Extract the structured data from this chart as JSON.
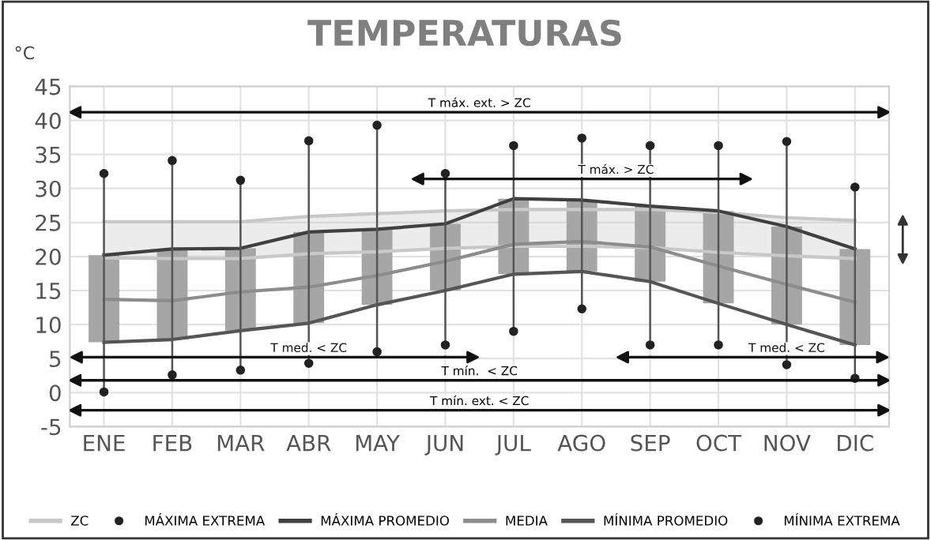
{
  "chart_data": {
    "type": "line",
    "title": "TEMPERATURAS",
    "ylabel": "°C",
    "categories": [
      "ENE",
      "FEB",
      "MAR",
      "ABR",
      "MAY",
      "JUN",
      "JUL",
      "AGO",
      "SEP",
      "OCT",
      "NOV",
      "DIC"
    ],
    "ylim": [
      -5,
      45
    ],
    "yticks": [
      -5,
      0,
      5,
      10,
      15,
      20,
      25,
      30,
      35,
      40,
      45
    ],
    "grid": true,
    "legend": "bottom",
    "series": [
      {
        "name": null,
        "type": "bar",
        "color": "#a6a6a6",
        "base": [
          7.4,
          7.8,
          9.1,
          10.2,
          12.9,
          15.0,
          17.4,
          17.8,
          16.3,
          13.1,
          10.0,
          7.0
        ],
        "values": [
          12.8,
          13.3,
          12.1,
          13.4,
          11.1,
          9.8,
          11.1,
          10.5,
          11.1,
          13.6,
          14.4,
          14.1
        ]
      },
      {
        "name": "ZC",
        "color": "#c8c8c8",
        "values": [
          25.1,
          25.1,
          25.1,
          25.9,
          26.3,
          26.7,
          26.9,
          26.9,
          26.9,
          26.5,
          25.7,
          25.3
        ],
        "lower": [
          19.8,
          19.7,
          19.7,
          20.4,
          20.7,
          21.2,
          21.5,
          21.5,
          21.3,
          20.6,
          20.1,
          19.7
        ],
        "upper": [
          25.1,
          25.1,
          25.1,
          25.9,
          26.3,
          26.7,
          26.9,
          26.9,
          26.9,
          26.5,
          25.7,
          25.3
        ]
      },
      {
        "name": null,
        "color": "#c8c8c8",
        "values": [
          19.8,
          19.7,
          19.7,
          20.4,
          20.7,
          21.2,
          21.5,
          21.5,
          21.3,
          20.6,
          20.1,
          19.7
        ]
      },
      {
        "name": "MÁXIMA EXTREMA",
        "type": "scatter",
        "marker": "circle",
        "color": "#222222",
        "values": [
          32.2,
          34.1,
          31.2,
          37.0,
          39.3,
          32.2,
          36.3,
          37.4,
          36.3,
          36.3,
          36.9,
          30.2
        ]
      },
      {
        "name": "MÁXIMA PROMEDIO",
        "color": "#404040",
        "values": [
          20.2,
          21.1,
          21.2,
          23.6,
          24.0,
          24.8,
          28.5,
          28.3,
          27.4,
          26.7,
          24.4,
          21.1
        ]
      },
      {
        "name": "MEDIA",
        "color": "#8c8c8c",
        "values": [
          13.7,
          13.5,
          14.8,
          15.5,
          17.2,
          19.3,
          21.8,
          22.2,
          21.4,
          18.6,
          15.9,
          13.3
        ]
      },
      {
        "name": "MÍNIMA PROMEDIO",
        "color": "#555555",
        "values": [
          7.4,
          7.8,
          9.1,
          10.2,
          12.9,
          15.0,
          17.4,
          17.8,
          16.3,
          13.1,
          10.0,
          7.0
        ]
      },
      {
        "name": "MÍNIMA EXTREMA",
        "type": "scatter",
        "marker": "circle",
        "color": "#222222",
        "values": [
          0.1,
          2.6,
          3.3,
          4.3,
          6.0,
          7.0,
          9.0,
          12.3,
          7.0,
          7.0,
          4.1,
          2.1
        ]
      },
      {
        "name": "T máx. > ZC",
        "line_style": "solid",
        "color": "#111111",
        "values": [
          null,
          null,
          null,
          null,
          null,
          31.4,
          31.4,
          31.4,
          31.4,
          31.4,
          null,
          null
        ]
      },
      {
        "name": "T med. < ZC",
        "line_style": "solid",
        "color": "#111111",
        "values": [
          5.2,
          5.2,
          5.2,
          5.2,
          5.2,
          5.2,
          null,
          null,
          null,
          null,
          null,
          null
        ]
      },
      {
        "name": "T med. < ZC",
        "line_style": "solid",
        "color": "#111111",
        "values": [
          null,
          null,
          null,
          null,
          null,
          null,
          null,
          null,
          5.2,
          5.2,
          5.2,
          5.2
        ]
      }
    ],
    "ref_lines": [
      {
        "axis": "y",
        "value": 41.2,
        "label": "T máx. ext. > ZC",
        "color": "#111111"
      },
      {
        "axis": "y",
        "value": 1.8,
        "label": "T mín.  < ZC",
        "color": "#111111"
      },
      {
        "axis": "y",
        "value": -2.6,
        "label": "T mín. ext. < ZC",
        "color": "#111111"
      }
    ]
  }
}
